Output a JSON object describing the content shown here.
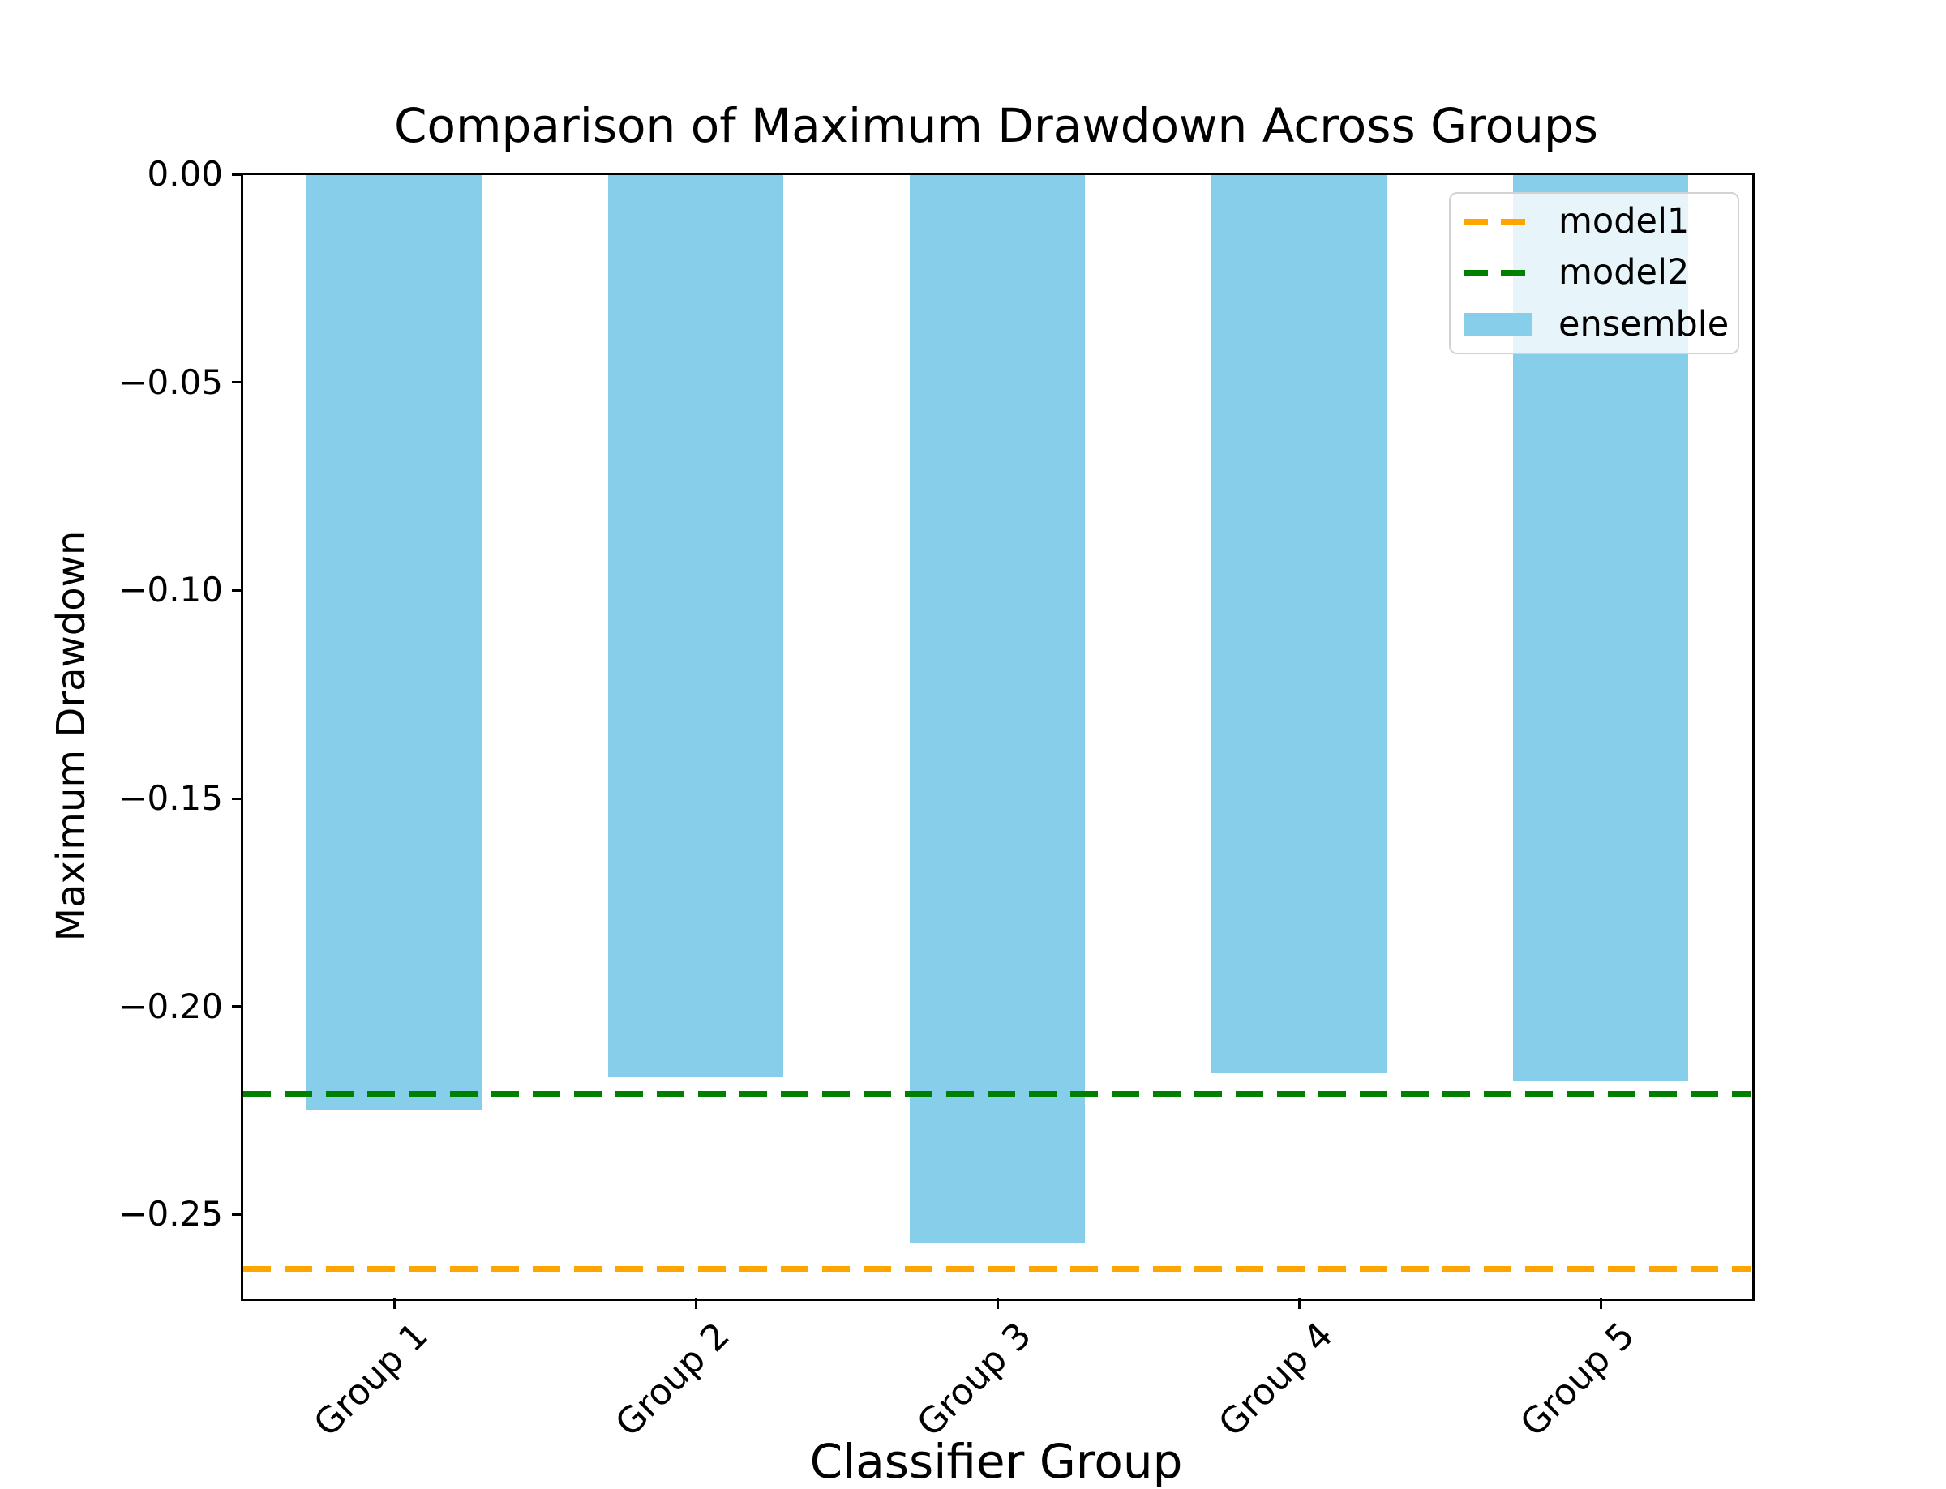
{
  "chart_data": {
    "type": "bar",
    "title": "Comparison of Maximum Drawdown Across Groups",
    "xlabel": "Classifier Group",
    "ylabel": "Maximum Drawdown",
    "categories": [
      "Group 1",
      "Group 2",
      "Group 3",
      "Group 4",
      "Group 5"
    ],
    "series": [
      {
        "name": "ensemble",
        "type": "bar",
        "color": "#87CEEB",
        "values": [
          -0.225,
          -0.217,
          -0.257,
          -0.216,
          -0.218
        ]
      },
      {
        "name": "model1",
        "type": "hline",
        "style": "dashed",
        "color": "#FFA500",
        "value": -0.263
      },
      {
        "name": "model2",
        "type": "hline",
        "style": "dashed",
        "color": "#008000",
        "value": -0.221
      }
    ],
    "ylim": [
      -0.27,
      0.0
    ],
    "yticks": [
      {
        "value": 0.0,
        "label": "0.00"
      },
      {
        "value": -0.05,
        "label": "−0.05"
      },
      {
        "value": -0.1,
        "label": "−0.10"
      },
      {
        "value": -0.15,
        "label": "−0.15"
      },
      {
        "value": -0.2,
        "label": "−0.20"
      },
      {
        "value": -0.25,
        "label": "−0.25"
      }
    ],
    "legend": {
      "position": "upper right",
      "entries": [
        {
          "label": "model1",
          "swatch": "dashed-line",
          "color": "#FFA500"
        },
        {
          "label": "model2",
          "swatch": "dashed-line",
          "color": "#008000"
        },
        {
          "label": "ensemble",
          "swatch": "patch",
          "color": "#87CEEB"
        }
      ]
    },
    "grid": false,
    "axis_color": "#000000",
    "background": "#FFFFFF"
  }
}
